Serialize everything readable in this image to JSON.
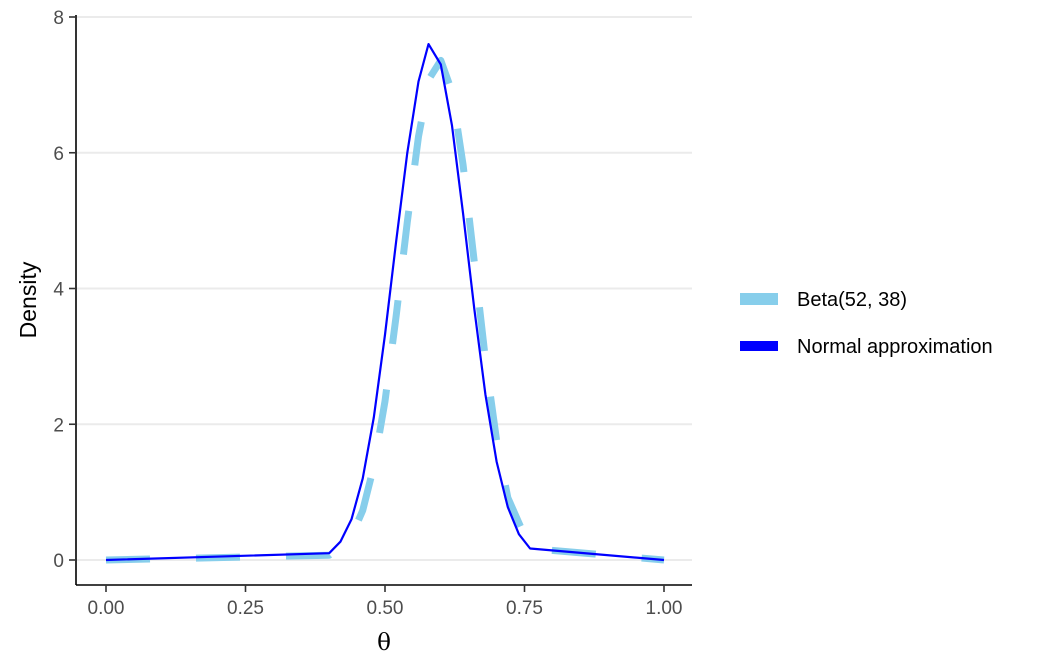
{
  "chart_data": {
    "type": "line",
    "xlabel": "θ",
    "ylabel": "Density",
    "xlim": [
      0,
      1
    ],
    "ylim": [
      0,
      8
    ],
    "x_ticks": [
      0,
      0.25,
      0.5,
      0.75,
      1
    ],
    "x_tick_labels": [
      "0.00",
      "0.25",
      "0.50",
      "0.75",
      "1.00"
    ],
    "y_ticks": [
      0,
      2,
      4,
      6,
      8
    ],
    "y_tick_labels": [
      "0",
      "2",
      "4",
      "6",
      "8"
    ],
    "grid": "horizontal major",
    "legend_position": "right",
    "series": [
      {
        "name": "Beta(52, 38)",
        "color": "#87CEEB",
        "line_style": "dashed",
        "x": [
          0,
          0.4,
          0.44,
          0.46,
          0.48,
          0.5,
          0.52,
          0.54,
          0.56,
          0.58,
          0.6,
          0.62,
          0.64,
          0.66,
          0.68,
          0.7,
          0.72,
          0.76,
          1
        ],
        "y": [
          0,
          0.07,
          0.35,
          0.73,
          1.38,
          2.34,
          3.6,
          4.98,
          6.24,
          7.1,
          7.36,
          6.9,
          5.82,
          4.39,
          2.96,
          1.76,
          0.92,
          0.17,
          0
        ]
      },
      {
        "name": "Normal approximation",
        "color": "#0000FF",
        "line_style": "solid",
        "x": [
          0,
          0.4,
          0.42,
          0.44,
          0.46,
          0.48,
          0.5,
          0.52,
          0.54,
          0.56,
          0.578,
          0.6,
          0.62,
          0.64,
          0.66,
          0.68,
          0.7,
          0.72,
          0.74,
          0.76,
          1
        ],
        "y": [
          0,
          0.1,
          0.27,
          0.6,
          1.2,
          2.1,
          3.32,
          4.7,
          6.0,
          7.05,
          7.6,
          7.3,
          6.4,
          5.1,
          3.7,
          2.44,
          1.45,
          0.78,
          0.38,
          0.17,
          0
        ]
      }
    ]
  }
}
